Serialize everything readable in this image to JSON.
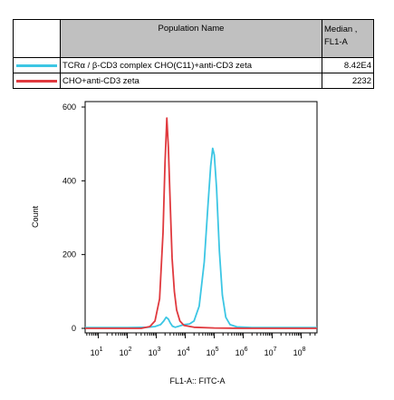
{
  "table": {
    "col_name": "Population Name",
    "col_median_line1": "Median ,",
    "col_median_line2": "FL1-A",
    "rows": [
      {
        "name": "TCRα / β-CD3 complex CHO(C11)+anti-CD3 zeta",
        "median": "8.42E4",
        "color": "#3cc6e4"
      },
      {
        "name": "CHO+anti-CD3 zeta",
        "median": "2232",
        "color": "#e0393e"
      }
    ]
  },
  "chart_data": {
    "type": "line",
    "xlabel": "FL1-A:: FITC-A",
    "ylabel": "Count",
    "xscale": "log",
    "xlim": [
      3.5,
      350000000
    ],
    "ylim": [
      0,
      620
    ],
    "yticks": [
      0,
      200,
      400,
      600
    ],
    "xtick_labels": [
      {
        "base": "10",
        "exp": "1",
        "value": 10
      },
      {
        "base": "10",
        "exp": "2",
        "value": 100
      },
      {
        "base": "10",
        "exp": "3",
        "value": 1000
      },
      {
        "base": "10",
        "exp": "4",
        "value": 10000
      },
      {
        "base": "10",
        "exp": "5",
        "value": 100000
      },
      {
        "base": "10",
        "exp": "6",
        "value": 1000000
      },
      {
        "base": "10",
        "exp": "7",
        "value": 10000000
      },
      {
        "base": "10",
        "exp": "8",
        "value": 100000000
      }
    ],
    "series": [
      {
        "name": "TCRα / β-CD3 complex CHO(C11)+anti-CD3 zeta",
        "color": "#3cc6e4",
        "points": [
          [
            3.5,
            2
          ],
          [
            100,
            2
          ],
          [
            500,
            3
          ],
          [
            900,
            5
          ],
          [
            1400,
            10
          ],
          [
            1800,
            20
          ],
          [
            2200,
            30
          ],
          [
            2600,
            25
          ],
          [
            3000,
            15
          ],
          [
            3600,
            6
          ],
          [
            4500,
            3
          ],
          [
            6000,
            6
          ],
          [
            9000,
            10
          ],
          [
            14000,
            12
          ],
          [
            20000,
            20
          ],
          [
            30000,
            60
          ],
          [
            45000,
            180
          ],
          [
            60000,
            330
          ],
          [
            75000,
            440
          ],
          [
            88000,
            488
          ],
          [
            100000,
            470
          ],
          [
            120000,
            380
          ],
          [
            150000,
            210
          ],
          [
            190000,
            90
          ],
          [
            250000,
            30
          ],
          [
            350000,
            10
          ],
          [
            600000,
            4
          ],
          [
            2000000,
            2
          ],
          [
            350000000,
            2
          ]
        ]
      },
      {
        "name": "CHO+anti-CD3 zeta",
        "color": "#e0393e",
        "points": [
          [
            3.5,
            0
          ],
          [
            300,
            0
          ],
          [
            600,
            5
          ],
          [
            900,
            20
          ],
          [
            1300,
            80
          ],
          [
            1700,
            260
          ],
          [
            2000,
            450
          ],
          [
            2300,
            570
          ],
          [
            2600,
            490
          ],
          [
            3000,
            340
          ],
          [
            3500,
            190
          ],
          [
            4200,
            100
          ],
          [
            5000,
            50
          ],
          [
            6500,
            20
          ],
          [
            9000,
            8
          ],
          [
            20000,
            3
          ],
          [
            100000,
            1
          ],
          [
            1000000,
            0
          ],
          [
            350000000,
            0
          ]
        ]
      }
    ]
  }
}
